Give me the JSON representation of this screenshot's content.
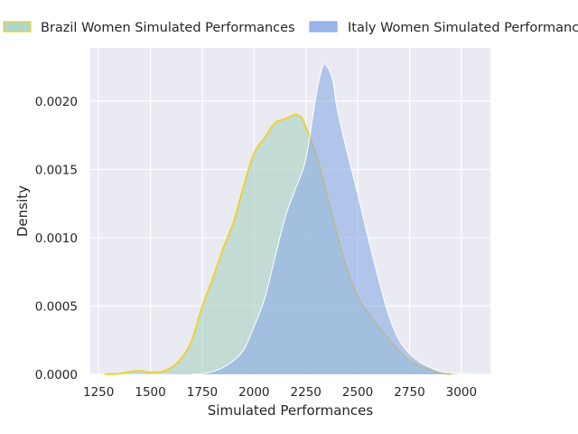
{
  "chart_data": {
    "type": "area",
    "title": "",
    "xlabel": "Simulated Performances",
    "ylabel": "Density",
    "xlim": [
      1210,
      3140
    ],
    "ylim": [
      0,
      0.00239
    ],
    "xticks": [
      1250,
      1500,
      1750,
      2000,
      2250,
      2500,
      2750,
      3000
    ],
    "xtick_labels": [
      "1250",
      "1500",
      "1750",
      "2000",
      "2250",
      "2500",
      "2750",
      "3000"
    ],
    "yticks": [
      0,
      0.0005,
      0.001,
      0.0015,
      0.002
    ],
    "ytick_labels": [
      "0.0000",
      "0.0005",
      "0.0010",
      "0.0015",
      "0.0020"
    ],
    "grid": true,
    "legend_position": "top",
    "series": [
      {
        "name": "Brazil Women Simulated Performances",
        "fill_color": "#a9d2c1",
        "line_color": "#f2d024",
        "x": [
          1280,
          1350,
          1400,
          1450,
          1500,
          1550,
          1600,
          1650,
          1700,
          1750,
          1800,
          1850,
          1900,
          1950,
          2000,
          2050,
          2100,
          2150,
          2200,
          2230,
          2250,
          2300,
          2350,
          2400,
          2450,
          2500,
          2550,
          2600,
          2650,
          2700,
          2750,
          2800,
          2850,
          2900,
          2950
        ],
        "y": [
          0,
          5e-06,
          2e-05,
          2.5e-05,
          1.5e-05,
          2e-05,
          5e-05,
          0.00012,
          0.00025,
          0.0005,
          0.0007,
          0.00092,
          0.00111,
          0.00138,
          0.00162,
          0.00173,
          0.00184,
          0.00187,
          0.0019,
          0.00188,
          0.00181,
          0.00161,
          0.00132,
          0.00103,
          0.00076,
          0.00057,
          0.00045,
          0.00035,
          0.00026,
          0.00017,
          0.0001,
          6e-05,
          3e-05,
          1e-05,
          0
        ]
      },
      {
        "name": "Italy Women Simulated Performances",
        "fill_color": "#8eaee6",
        "line_color": "#ffffff",
        "x": [
          1700,
          1750,
          1800,
          1850,
          1900,
          1950,
          2000,
          2050,
          2100,
          2150,
          2200,
          2250,
          2300,
          2330,
          2350,
          2380,
          2400,
          2450,
          2500,
          2550,
          2600,
          2650,
          2700,
          2750,
          2800,
          2850,
          2900,
          2950,
          3000,
          3050
        ],
        "y": [
          0,
          5e-06,
          2e-05,
          5e-05,
          0.0001,
          0.00018,
          0.00035,
          0.00055,
          0.00085,
          0.00115,
          0.00136,
          0.00158,
          0.00205,
          0.00225,
          0.00226,
          0.00215,
          0.00195,
          0.00162,
          0.00132,
          0.001,
          0.0007,
          0.00043,
          0.00025,
          0.00015,
          9e-05,
          5e-05,
          2e-05,
          1e-05,
          3e-06,
          0
        ]
      }
    ]
  }
}
